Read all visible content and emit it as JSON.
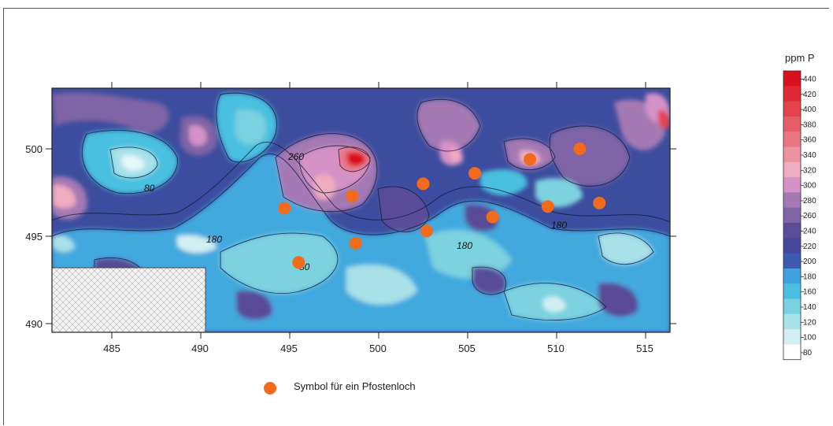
{
  "map": {
    "x_ticks": [
      "485",
      "490",
      "495",
      "500",
      "505",
      "510",
      "515"
    ],
    "y_ticks": [
      "500",
      "495",
      "490"
    ],
    "contour_labels": [
      "260",
      "80",
      "180",
      "180",
      "180",
      "80"
    ],
    "colorbar_unit": "ppm P",
    "colorbar_levels": [
      440,
      420,
      400,
      380,
      360,
      340,
      320,
      300,
      280,
      260,
      240,
      220,
      200,
      180,
      160,
      140,
      120,
      100,
      80
    ],
    "colorbar_colors": [
      "#d8111c",
      "#df2a35",
      "#e3424d",
      "#e65c68",
      "#ea7684",
      "#ee92a2",
      "#efabc0",
      "#d592c6",
      "#a479b4",
      "#7e63a6",
      "#5a4c98",
      "#46479a",
      "#3b5cb0",
      "#3fa4dd",
      "#49c0df",
      "#7ad1df",
      "#a8e1e8",
      "#d3eff3",
      "#ffffff"
    ],
    "legend_caption": "Symbol für ein Pfostenloch",
    "marker_color": "#f26a1b",
    "posthole_points": [
      [
        494.7,
        496.6
      ],
      [
        498.5,
        497.3
      ],
      [
        502.5,
        498.0
      ],
      [
        505.4,
        498.6
      ],
      [
        508.5,
        499.4
      ],
      [
        511.3,
        500.0
      ],
      [
        495.5,
        493.5
      ],
      [
        498.7,
        494.6
      ],
      [
        502.7,
        495.3
      ],
      [
        506.4,
        496.1
      ],
      [
        509.5,
        496.7
      ],
      [
        512.4,
        496.9
      ]
    ]
  }
}
